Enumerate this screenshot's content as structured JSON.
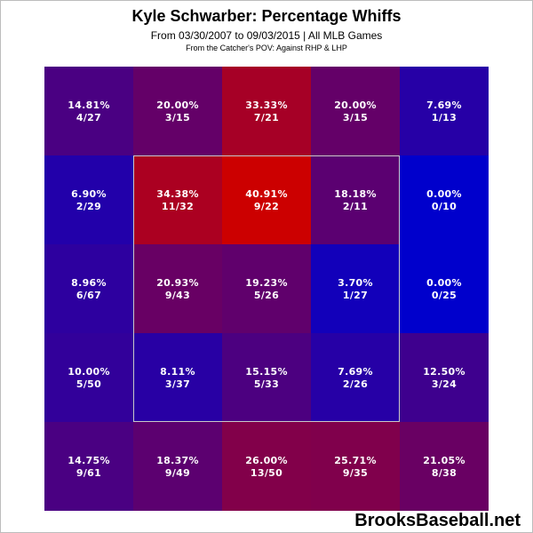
{
  "chart_data": {
    "type": "heatmap",
    "title": "Kyle Schwarber: Percentage Whiffs",
    "subtitle": "From 03/30/2007 to 09/03/2015 | All MLB Games",
    "subtitle2": "From the Catcher's POV:  Against RHP & LHP",
    "rows": 5,
    "cols": 5,
    "strike_zone": {
      "rows": [
        1,
        3
      ],
      "cols": [
        1,
        3
      ]
    },
    "color_scale": {
      "low": "#0000cc",
      "high": "#cc0000",
      "min": 0,
      "max": 40.91
    },
    "cells": [
      [
        {
          "pct": "14.81%",
          "frac": "4/27",
          "value": 14.81
        },
        {
          "pct": "20.00%",
          "frac": "3/15",
          "value": 20.0
        },
        {
          "pct": "33.33%",
          "frac": "7/21",
          "value": 33.33
        },
        {
          "pct": "20.00%",
          "frac": "3/15",
          "value": 20.0
        },
        {
          "pct": "7.69%",
          "frac": "1/13",
          "value": 7.69
        }
      ],
      [
        {
          "pct": "6.90%",
          "frac": "2/29",
          "value": 6.9
        },
        {
          "pct": "34.38%",
          "frac": "11/32",
          "value": 34.38
        },
        {
          "pct": "40.91%",
          "frac": "9/22",
          "value": 40.91
        },
        {
          "pct": "18.18%",
          "frac": "2/11",
          "value": 18.18
        },
        {
          "pct": "0.00%",
          "frac": "0/10",
          "value": 0.0
        }
      ],
      [
        {
          "pct": "8.96%",
          "frac": "6/67",
          "value": 8.96
        },
        {
          "pct": "20.93%",
          "frac": "9/43",
          "value": 20.93
        },
        {
          "pct": "19.23%",
          "frac": "5/26",
          "value": 19.23
        },
        {
          "pct": "3.70%",
          "frac": "1/27",
          "value": 3.7
        },
        {
          "pct": "0.00%",
          "frac": "0/25",
          "value": 0.0
        }
      ],
      [
        {
          "pct": "10.00%",
          "frac": "5/50",
          "value": 10.0
        },
        {
          "pct": "8.11%",
          "frac": "3/37",
          "value": 8.11
        },
        {
          "pct": "15.15%",
          "frac": "5/33",
          "value": 15.15
        },
        {
          "pct": "7.69%",
          "frac": "2/26",
          "value": 7.69
        },
        {
          "pct": "12.50%",
          "frac": "3/24",
          "value": 12.5
        }
      ],
      [
        {
          "pct": "14.75%",
          "frac": "9/61",
          "value": 14.75
        },
        {
          "pct": "18.37%",
          "frac": "9/49",
          "value": 18.37
        },
        {
          "pct": "26.00%",
          "frac": "13/50",
          "value": 26.0
        },
        {
          "pct": "25.71%",
          "frac": "9/35",
          "value": 25.71
        },
        {
          "pct": "21.05%",
          "frac": "8/38",
          "value": 21.05
        }
      ]
    ]
  },
  "branding": {
    "text": "BrooksBaseball.net"
  }
}
